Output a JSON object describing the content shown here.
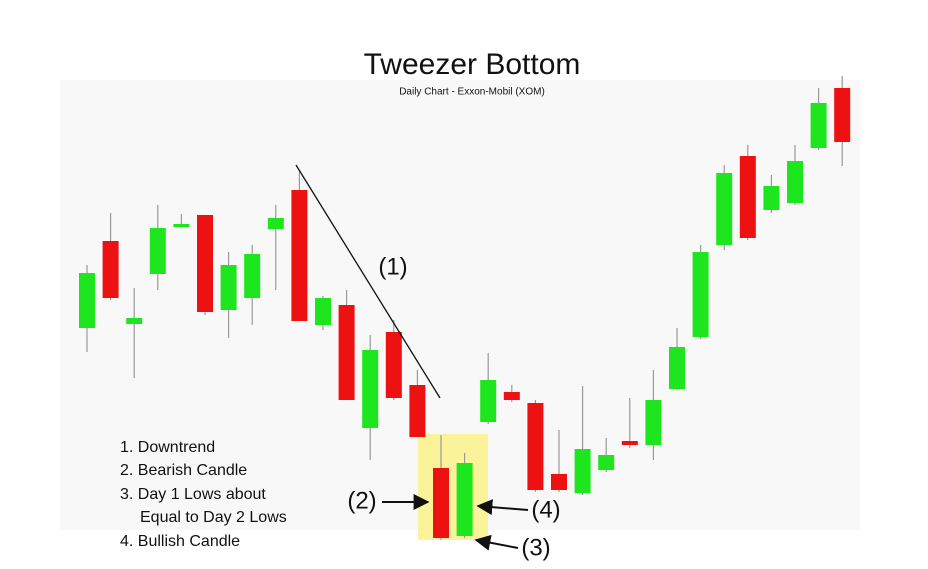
{
  "chart_data": {
    "type": "candlestick",
    "title": "Tweezer Bottom",
    "subtitle": "Daily Chart - Exxon-Mobil (XOM)",
    "up_color": "#1ee61e",
    "down_color": "#ee1111",
    "ylim": [
      0,
      569
    ],
    "series": [
      {
        "open": [
          241,
          328,
          245,
          295,
          342,
          354,
          259,
          271,
          340,
          379,
          244,
          264,
          141,
          237,
          184,
          101,
          33,
          147,
          177,
          166,
          95,
          76,
          99,
          128,
          124,
          180,
          232,
          324,
          413,
          359,
          366,
          421,
          481
        ],
        "high": [
          304,
          356,
          281,
          364,
          355,
          354,
          317,
          324,
          364,
          399,
          273,
          279,
          234,
          249,
          199,
          134,
          116,
          216,
          184,
          169,
          139,
          183,
          131,
          171,
          199,
          241,
          324,
          404,
          424,
          394,
          424,
          481,
          493
        ],
        "low": [
          217,
          269,
          191,
          279,
          341,
          254,
          231,
          244,
          279,
          248,
          239,
          169,
          109,
          169,
          132,
          29,
          31,
          145,
          167,
          77,
          77,
          74,
          97,
          121,
          109,
          179,
          230,
          319,
          329,
          356,
          364,
          419,
          403
        ],
        "close": [
          296,
          271,
          251,
          341,
          345,
          257,
          304,
          315,
          351,
          248,
          271,
          169,
          219,
          171,
          132,
          31,
          106,
          189,
          169,
          79,
          79,
          120,
          114,
          124,
          169,
          222,
          317,
          396,
          331,
          383,
          408,
          466,
          427
        ]
      }
    ],
    "annotations": [
      "(1)",
      "(2)",
      "(3)",
      "(4)"
    ],
    "notes": [
      "1. Downtrend",
      "2. Bearish Candle",
      "3. Day 1 Lows about",
      "Equal to Day 2 Lows",
      "4. Bullish Candle"
    ]
  }
}
